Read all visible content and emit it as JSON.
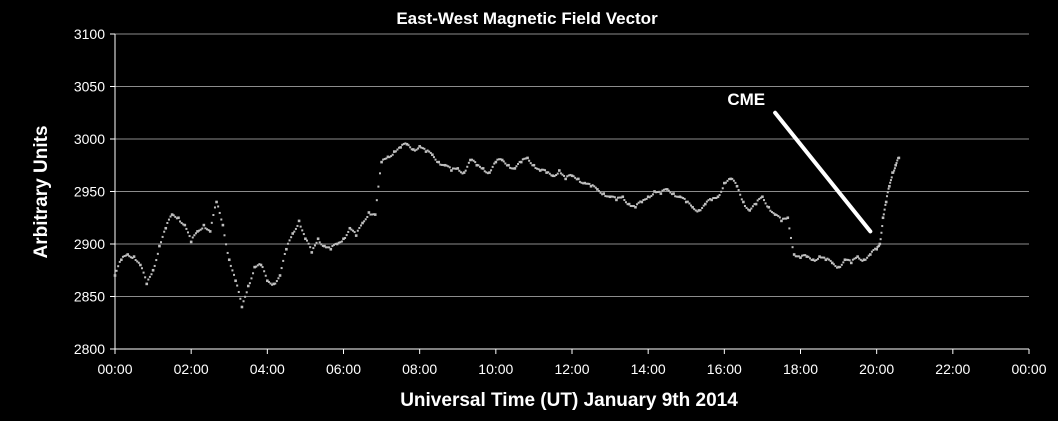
{
  "chart_data": {
    "type": "scatter",
    "title": "East-West Magnetic Field Vector",
    "xlabel": "Universal Time (UT) January 9th  2014",
    "ylabel": "Arbitrary Units",
    "xlim": [
      "00:00",
      "24:00"
    ],
    "ylim": [
      2800,
      3100
    ],
    "x_ticks": [
      "00:00",
      "02:00",
      "04:00",
      "06:00",
      "08:00",
      "10:00",
      "12:00",
      "14:00",
      "16:00",
      "18:00",
      "20:00",
      "22:00",
      "00:00"
    ],
    "y_ticks": [
      2800,
      2850,
      2900,
      2950,
      3000,
      3050,
      3100
    ],
    "grid": "horizontal",
    "marker_color": "#bfbfbf",
    "series": [
      {
        "points": [
          [
            "00:00",
            2870
          ],
          [
            "00:10",
            2885
          ],
          [
            "00:20",
            2890
          ],
          [
            "00:30",
            2888
          ],
          [
            "00:40",
            2880
          ],
          [
            "00:50",
            2862
          ],
          [
            "01:00",
            2875
          ],
          [
            "01:10",
            2898
          ],
          [
            "01:20",
            2915
          ],
          [
            "01:30",
            2928
          ],
          [
            "01:40",
            2925
          ],
          [
            "01:50",
            2918
          ],
          [
            "02:00",
            2902
          ],
          [
            "02:10",
            2912
          ],
          [
            "02:20",
            2918
          ],
          [
            "02:30",
            2912
          ],
          [
            "02:40",
            2940
          ],
          [
            "02:50",
            2918
          ],
          [
            "03:00",
            2885
          ],
          [
            "03:10",
            2865
          ],
          [
            "03:20",
            2840
          ],
          [
            "03:30",
            2860
          ],
          [
            "03:40",
            2878
          ],
          [
            "03:50",
            2880
          ],
          [
            "04:00",
            2865
          ],
          [
            "04:10",
            2862
          ],
          [
            "04:20",
            2870
          ],
          [
            "04:30",
            2895
          ],
          [
            "04:40",
            2910
          ],
          [
            "04:50",
            2922
          ],
          [
            "05:00",
            2905
          ],
          [
            "05:10",
            2892
          ],
          [
            "05:20",
            2905
          ],
          [
            "05:30",
            2898
          ],
          [
            "05:40",
            2895
          ],
          [
            "05:50",
            2900
          ],
          [
            "06:00",
            2905
          ],
          [
            "06:10",
            2915
          ],
          [
            "06:20",
            2908
          ],
          [
            "06:30",
            2920
          ],
          [
            "06:40",
            2930
          ],
          [
            "06:50",
            2928
          ],
          [
            "07:00",
            2978
          ],
          [
            "07:10",
            2983
          ],
          [
            "07:20",
            2988
          ],
          [
            "07:30",
            2992
          ],
          [
            "07:40",
            2995
          ],
          [
            "07:50",
            2990
          ],
          [
            "08:00",
            2993
          ],
          [
            "08:10",
            2988
          ],
          [
            "08:20",
            2985
          ],
          [
            "08:30",
            2978
          ],
          [
            "08:40",
            2975
          ],
          [
            "08:50",
            2970
          ],
          [
            "09:00",
            2972
          ],
          [
            "09:10",
            2968
          ],
          [
            "09:20",
            2980
          ],
          [
            "09:30",
            2975
          ],
          [
            "09:40",
            2972
          ],
          [
            "09:50",
            2968
          ],
          [
            "10:00",
            2978
          ],
          [
            "10:10",
            2980
          ],
          [
            "10:20",
            2975
          ],
          [
            "10:30",
            2972
          ],
          [
            "10:40",
            2978
          ],
          [
            "10:50",
            2982
          ],
          [
            "11:00",
            2975
          ],
          [
            "11:10",
            2970
          ],
          [
            "11:20",
            2968
          ],
          [
            "11:30",
            2965
          ],
          [
            "11:40",
            2970
          ],
          [
            "11:50",
            2962
          ],
          [
            "12:00",
            2965
          ],
          [
            "12:10",
            2962
          ],
          [
            "12:20",
            2958
          ],
          [
            "12:30",
            2955
          ],
          [
            "12:40",
            2952
          ],
          [
            "12:50",
            2948
          ],
          [
            "13:00",
            2945
          ],
          [
            "13:10",
            2942
          ],
          [
            "13:20",
            2945
          ],
          [
            "13:30",
            2938
          ],
          [
            "13:40",
            2935
          ],
          [
            "13:50",
            2940
          ],
          [
            "14:00",
            2945
          ],
          [
            "14:10",
            2950
          ],
          [
            "14:20",
            2948
          ],
          [
            "14:30",
            2952
          ],
          [
            "14:40",
            2948
          ],
          [
            "14:50",
            2945
          ],
          [
            "15:00",
            2940
          ],
          [
            "15:10",
            2935
          ],
          [
            "15:20",
            2932
          ],
          [
            "15:30",
            2938
          ],
          [
            "15:40",
            2942
          ],
          [
            "15:50",
            2945
          ],
          [
            "16:00",
            2958
          ],
          [
            "16:10",
            2962
          ],
          [
            "16:20",
            2955
          ],
          [
            "16:30",
            2940
          ],
          [
            "16:40",
            2932
          ],
          [
            "16:50",
            2938
          ],
          [
            "17:00",
            2945
          ],
          [
            "17:10",
            2935
          ],
          [
            "17:20",
            2928
          ],
          [
            "17:30",
            2922
          ],
          [
            "17:40",
            2925
          ],
          [
            "17:50",
            2890
          ],
          [
            "18:00",
            2887
          ],
          [
            "18:10",
            2888
          ],
          [
            "18:20",
            2885
          ],
          [
            "18:30",
            2888
          ],
          [
            "18:40",
            2885
          ],
          [
            "18:50",
            2882
          ],
          [
            "19:00",
            2878
          ],
          [
            "19:10",
            2885
          ],
          [
            "19:20",
            2882
          ],
          [
            "19:30",
            2888
          ],
          [
            "19:40",
            2885
          ],
          [
            "19:50",
            2890
          ],
          [
            "20:00",
            2895
          ],
          [
            "20:05",
            2900
          ],
          [
            "20:10",
            2925
          ],
          [
            "20:15",
            2940
          ],
          [
            "20:20",
            2955
          ],
          [
            "20:25",
            2968
          ],
          [
            "20:30",
            2975
          ],
          [
            "20:35",
            2982
          ]
        ]
      }
    ],
    "annotations": [
      {
        "text": "CME",
        "arrow_from": [
          "17:20",
          3025
        ],
        "arrow_to": [
          "19:50",
          2912
        ]
      }
    ]
  }
}
